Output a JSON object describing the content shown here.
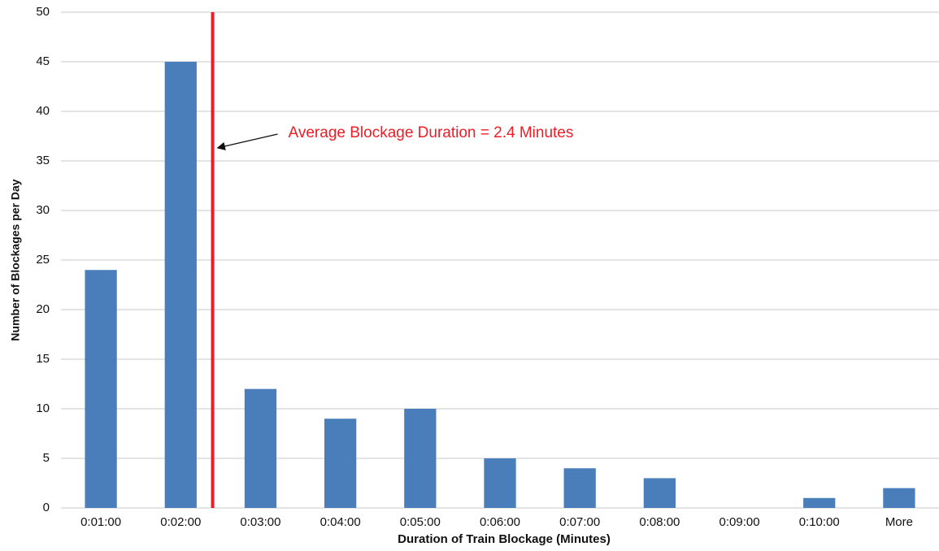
{
  "chart_data": {
    "type": "bar",
    "x_label": "Duration of Train Blockage (Minutes)",
    "y_label": "Number of Blockages per Day",
    "categories": [
      "0:01:00",
      "0:02:00",
      "0:03:00",
      "0:04:00",
      "0:05:00",
      "0:06:00",
      "0:07:00",
      "0:08:00",
      "0:09:00",
      "0:10:00",
      "More"
    ],
    "values": [
      24,
      45,
      12,
      9,
      10,
      5,
      4,
      3,
      0,
      1,
      2
    ],
    "color": "#4a7ebb",
    "ylim": [
      0,
      50
    ],
    "yticks": [
      0,
      5,
      10,
      15,
      20,
      25,
      30,
      35,
      40,
      45,
      50
    ],
    "grid": true,
    "annotation": {
      "text": "Average Blockage Duration = 2.4 Minutes",
      "x": 2.4,
      "color": "#ee1c25"
    }
  }
}
